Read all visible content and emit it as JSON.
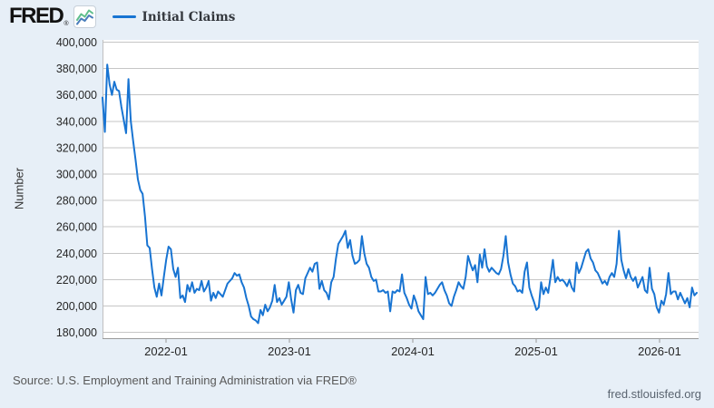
{
  "header": {
    "logo_text": "FRED",
    "registered": "®",
    "logo_icon_colors": {
      "blue": "#4a7ebb",
      "green": "#5fbf8c"
    },
    "legend": {
      "label": "Initial Claims",
      "color": "#1874d2"
    }
  },
  "y_axis": {
    "title": "Number",
    "tick_labels": [
      "400,000",
      "380,000",
      "360,000",
      "340,000",
      "320,000",
      "300,000",
      "280,000",
      "260,000",
      "240,000",
      "220,000",
      "200,000",
      "180,000"
    ]
  },
  "x_axis": {
    "ticks": [
      {
        "label": "2022-01",
        "position": 0.1065
      },
      {
        "label": "2023-01",
        "position": 0.3135
      },
      {
        "label": "2024-01",
        "position": 0.5205
      },
      {
        "label": "2025-01",
        "position": 0.7275
      },
      {
        "label": "2026-01",
        "position": 0.9345
      }
    ]
  },
  "footer": {
    "source": "Source: U.S. Employment and Training Administration via FRED®",
    "site": "fred.stlouisfed.org"
  },
  "chart_data": {
    "type": "line",
    "title": "Initial Claims",
    "series_name": "Initial Claims",
    "ylabel": "Number",
    "ylim": [
      180000,
      400000
    ],
    "y_grid_step": 20000,
    "grid": true,
    "legend_position": "top-left",
    "line_color": "#1874d2",
    "x_tick_labels": [
      "2022-01",
      "2023-01",
      "2024-01",
      "2025-01",
      "2026-01"
    ],
    "x_range_approx": [
      "2021-07",
      "2026-03"
    ],
    "frequency": "weekly",
    "values": [
      358000,
      332000,
      383000,
      368000,
      360000,
      370000,
      364000,
      363000,
      351000,
      341000,
      331000,
      372000,
      340000,
      325000,
      311000,
      296000,
      288000,
      285000,
      268000,
      246000,
      244000,
      228000,
      214000,
      207000,
      217000,
      208000,
      222000,
      235000,
      245000,
      243000,
      228000,
      222000,
      229000,
      206000,
      208000,
      203000,
      216000,
      211000,
      218000,
      210000,
      213000,
      212000,
      219000,
      211000,
      214000,
      219000,
      204000,
      210000,
      206000,
      211000,
      209000,
      207000,
      212000,
      217000,
      219000,
      221000,
      225000,
      223000,
      224000,
      218000,
      214000,
      206000,
      200000,
      192000,
      190000,
      189000,
      187000,
      197000,
      193000,
      201000,
      196000,
      199000,
      204000,
      216000,
      203000,
      206000,
      201000,
      204000,
      207000,
      218000,
      205000,
      195000,
      212000,
      216000,
      210000,
      209000,
      221000,
      225000,
      229000,
      226000,
      232000,
      233000,
      213000,
      219000,
      212000,
      210000,
      205000,
      218000,
      222000,
      236000,
      247000,
      250000,
      253000,
      257000,
      244000,
      250000,
      238000,
      232000,
      233000,
      235000,
      253000,
      240000,
      232000,
      229000,
      222000,
      219000,
      220000,
      211000,
      211000,
      212000,
      210000,
      211000,
      196000,
      211000,
      210000,
      212000,
      211000,
      224000,
      210000,
      206000,
      201000,
      198000,
      208000,
      203000,
      196000,
      193000,
      190000,
      222000,
      209000,
      210000,
      208000,
      210000,
      213000,
      216000,
      218000,
      212000,
      208000,
      202000,
      200000,
      207000,
      212000,
      218000,
      215000,
      213000,
      222000,
      238000,
      232000,
      227000,
      231000,
      218000,
      239000,
      229000,
      243000,
      230000,
      226000,
      229000,
      227000,
      225000,
      224000,
      228000,
      238000,
      253000,
      233000,
      224000,
      217000,
      215000,
      211000,
      212000,
      210000,
      226000,
      233000,
      214000,
      208000,
      203000,
      197000,
      199000,
      218000,
      209000,
      214000,
      210000,
      222000,
      235000,
      218000,
      222000,
      219000,
      220000,
      218000,
      215000,
      220000,
      214000,
      211000,
      233000,
      225000,
      229000,
      235000,
      241000,
      243000,
      236000,
      233000,
      227000,
      225000,
      221000,
      217000,
      219000,
      216000,
      222000,
      225000,
      222000,
      232000,
      257000,
      235000,
      227000,
      221000,
      228000,
      222000,
      219000,
      222000,
      214000,
      218000,
      222000,
      212000,
      210000,
      229000,
      213000,
      209000,
      199000,
      195000,
      204000,
      201000,
      209000,
      225000,
      209000,
      211000,
      211000,
      205000,
      210000,
      206000,
      202000,
      206000,
      199000,
      214000,
      208000,
      210000
    ]
  }
}
